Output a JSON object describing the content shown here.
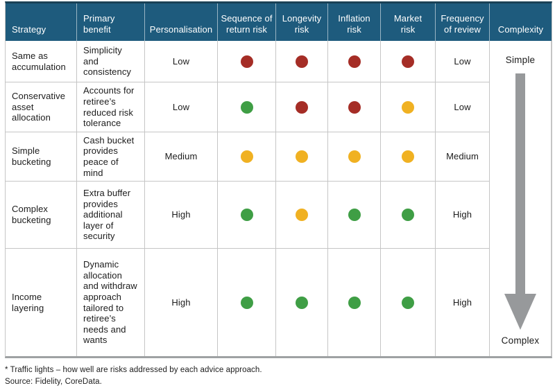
{
  "colors": {
    "header_bg": "#1E5B7D",
    "header_top_edge": "#1A4156",
    "header_text": "#FFFFFF",
    "traffic_red": "#A52D26",
    "traffic_amber": "#F0B122",
    "traffic_green": "#3F9E45",
    "arrow_gray": "#97999B",
    "grid_line": "#C5C5C5",
    "table_bottom_border": "#9EA1A3",
    "body_text": "#1B1B1B"
  },
  "chart_data": {
    "type": "table",
    "columns": [
      "Strategy",
      "Primary\nbenefit",
      "Personalisation",
      "Sequence of\nreturn risk",
      "Longevity\nrisk",
      "Inflation\nrisk",
      "Market\nrisk",
      "Frequency\nof review",
      "Complexity"
    ],
    "rows": [
      {
        "strategy": "Same as accumulation",
        "benefit": "Simplicity and consistency",
        "personalisation": "Low",
        "traffic_lights": {
          "sequence_of_return_risk": "red",
          "longevity_risk": "red",
          "inflation_risk": "red",
          "market_risk": "red"
        },
        "frequency_of_review": "Low"
      },
      {
        "strategy": "Conservative asset allocation",
        "benefit": "Accounts for retiree’s reduced risk tolerance",
        "personalisation": "Low",
        "traffic_lights": {
          "sequence_of_return_risk": "green",
          "longevity_risk": "red",
          "inflation_risk": "red",
          "market_risk": "amber"
        },
        "frequency_of_review": "Low"
      },
      {
        "strategy": "Simple bucketing",
        "benefit": "Cash bucket provides peace of mind",
        "personalisation": "Medium",
        "traffic_lights": {
          "sequence_of_return_risk": "amber",
          "longevity_risk": "amber",
          "inflation_risk": "amber",
          "market_risk": "amber"
        },
        "frequency_of_review": "Medium"
      },
      {
        "strategy": "Complex bucketing",
        "benefit": "Extra buffer provides additional layer of security",
        "personalisation": "High",
        "traffic_lights": {
          "sequence_of_return_risk": "green",
          "longevity_risk": "amber",
          "inflation_risk": "green",
          "market_risk": "green"
        },
        "frequency_of_review": "High"
      },
      {
        "strategy": "Income layering",
        "benefit": "Dynamic allocation and withdraw approach tailored to retiree’s needs and wants",
        "personalisation": "High",
        "traffic_lights": {
          "sequence_of_return_risk": "green",
          "longevity_risk": "green",
          "inflation_risk": "green",
          "market_risk": "green"
        },
        "frequency_of_review": "High"
      }
    ],
    "complexity_scale": {
      "top_label": "Simple",
      "bottom_label": "Complex"
    }
  },
  "footnotes": {
    "note": "* Traffic lights – how well are risks addressed by each advice approach.",
    "source": "Source: Fidelity, CoreData."
  }
}
